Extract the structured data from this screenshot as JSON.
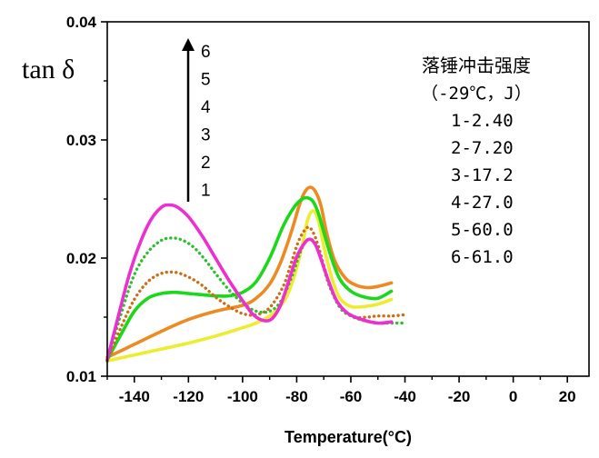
{
  "chart_data": {
    "type": "line",
    "ylabel": "tan δ",
    "xlabel": "Temperature(°C)",
    "xlim": [
      -150,
      28
    ],
    "ylim": [
      0.01,
      0.04
    ],
    "x_ticks": [
      -140,
      -120,
      -100,
      -80,
      -60,
      -40,
      -20,
      0,
      20
    ],
    "x_tick_labels": [
      "-140",
      "-120",
      "-100",
      "-80",
      "-60",
      "-40",
      "-20",
      "0",
      "20"
    ],
    "y_ticks": [
      0.01,
      0.02,
      0.03,
      0.04
    ],
    "y_tick_labels": [
      "0.01",
      "0.02",
      "0.03",
      "0.04"
    ],
    "grid": false,
    "arrow_labels": [
      "6",
      "5",
      "4",
      "3",
      "2",
      "1"
    ],
    "legend_title": "落锤冲击强度",
    "legend_subtitle": "（-29℃，J）",
    "legend_entries": [
      "1-2.40",
      "2-7.20",
      "3-17.2",
      "4-27.0",
      "5-60.0",
      "6-61.0"
    ],
    "series": [
      {
        "id": "1",
        "color": "#ecec30",
        "style": "solid",
        "x": [
          -150,
          -140,
          -130,
          -120,
          -110,
          -100,
          -95,
          -90,
          -87,
          -84,
          -81,
          -78,
          -76,
          -74,
          -72,
          -70,
          -67,
          -64,
          -60,
          -55,
          -50,
          -45
        ],
        "y": [
          0.0113,
          0.0118,
          0.0123,
          0.0128,
          0.0134,
          0.0141,
          0.0145,
          0.0151,
          0.0157,
          0.0166,
          0.0184,
          0.021,
          0.0232,
          0.024,
          0.0232,
          0.021,
          0.0183,
          0.0166,
          0.0159,
          0.0159,
          0.0161,
          0.0165
        ]
      },
      {
        "id": "2",
        "color": "#ee8a22",
        "style": "solid",
        "x": [
          -150,
          -140,
          -130,
          -120,
          -110,
          -100,
          -95,
          -90,
          -86,
          -82,
          -79,
          -77,
          -75,
          -73,
          -71,
          -69,
          -66,
          -62,
          -58,
          -54,
          -50,
          -45
        ],
        "y": [
          0.0116,
          0.0127,
          0.0138,
          0.0148,
          0.0155,
          0.016,
          0.0166,
          0.0178,
          0.0196,
          0.0222,
          0.0245,
          0.0256,
          0.026,
          0.0256,
          0.0244,
          0.0222,
          0.0198,
          0.0183,
          0.0177,
          0.0175,
          0.0176,
          0.0179
        ]
      },
      {
        "id": "3",
        "color": "#1ad81a",
        "style": "solid",
        "x": [
          -150,
          -145,
          -140,
          -135,
          -130,
          -125,
          -120,
          -115,
          -110,
          -105,
          -100,
          -95,
          -90,
          -85,
          -81,
          -78,
          -76,
          -74,
          -72,
          -70,
          -67,
          -64,
          -60,
          -55,
          -50,
          -45
        ],
        "y": [
          0.0114,
          0.0135,
          0.0155,
          0.0166,
          0.017,
          0.0171,
          0.017,
          0.0169,
          0.0168,
          0.0168,
          0.0171,
          0.018,
          0.02,
          0.0227,
          0.0243,
          0.025,
          0.0251,
          0.0248,
          0.0238,
          0.0222,
          0.0199,
          0.0182,
          0.0172,
          0.0167,
          0.0166,
          0.0172
        ]
      },
      {
        "id": "4",
        "color": "#cf6d14",
        "style": "dotted",
        "x": [
          -150,
          -145,
          -140,
          -135,
          -130,
          -125,
          -120,
          -115,
          -110,
          -105,
          -100,
          -95,
          -90,
          -85,
          -82,
          -79,
          -76,
          -74,
          -72,
          -69,
          -66,
          -62,
          -58,
          -54,
          -50,
          -45,
          -40
        ],
        "y": [
          0.0113,
          0.0141,
          0.0165,
          0.018,
          0.0187,
          0.0188,
          0.0184,
          0.0177,
          0.0167,
          0.0159,
          0.0153,
          0.0152,
          0.0158,
          0.0176,
          0.0196,
          0.0216,
          0.0226,
          0.0222,
          0.021,
          0.0186,
          0.0167,
          0.0155,
          0.015,
          0.015,
          0.0151,
          0.0151,
          0.0152
        ]
      },
      {
        "id": "5",
        "color": "#2dbe2d",
        "style": "dotted",
        "x": [
          -150,
          -145,
          -140,
          -135,
          -130,
          -126,
          -122,
          -118,
          -114,
          -110,
          -105,
          -100,
          -95,
          -90,
          -86,
          -82,
          -79,
          -77,
          -75,
          -73,
          -71,
          -68,
          -64,
          -60,
          -55,
          -50,
          -45,
          -40
        ],
        "y": [
          0.0113,
          0.0152,
          0.0186,
          0.0205,
          0.0215,
          0.0217,
          0.0215,
          0.0209,
          0.0199,
          0.0187,
          0.0173,
          0.0162,
          0.0155,
          0.0155,
          0.0163,
          0.0183,
          0.0203,
          0.0213,
          0.0216,
          0.0212,
          0.0199,
          0.0177,
          0.0158,
          0.0151,
          0.0147,
          0.0145,
          0.0145,
          0.0145
        ]
      },
      {
        "id": "6",
        "color": "#ee2fd0",
        "style": "solid",
        "x": [
          -150,
          -146,
          -142,
          -138,
          -134,
          -130,
          -127,
          -124,
          -120,
          -115,
          -110,
          -105,
          -100,
          -96,
          -92,
          -89,
          -86,
          -83,
          -80,
          -77,
          -75,
          -73,
          -71,
          -68,
          -65,
          -61,
          -56,
          -50,
          -45
        ],
        "y": [
          0.0114,
          0.015,
          0.0185,
          0.0212,
          0.0232,
          0.0243,
          0.0245,
          0.0243,
          0.0235,
          0.0219,
          0.02,
          0.0181,
          0.0164,
          0.0152,
          0.0147,
          0.0149,
          0.016,
          0.018,
          0.0201,
          0.0213,
          0.0216,
          0.0211,
          0.0199,
          0.0179,
          0.0163,
          0.0153,
          0.0148,
          0.0145,
          0.0146
        ]
      }
    ]
  }
}
